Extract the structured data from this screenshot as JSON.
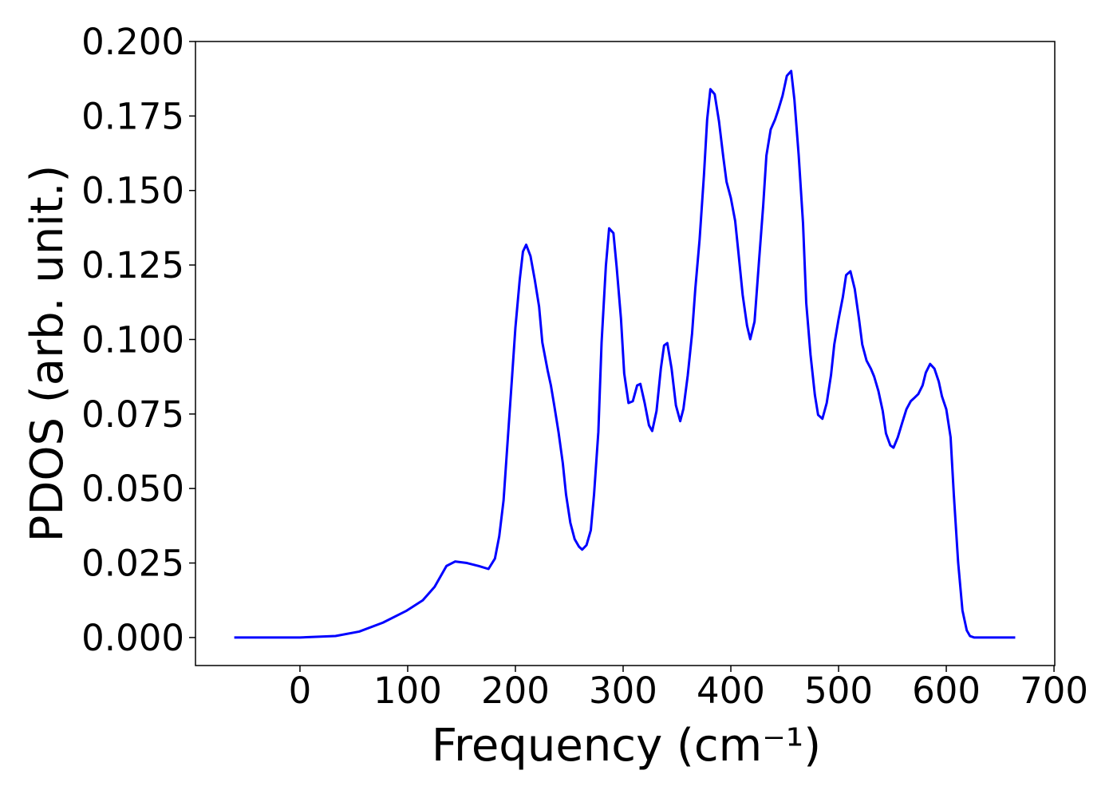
{
  "chart_data": {
    "type": "line",
    "xlabel": "Frequency (cm⁻¹)",
    "ylabel": "PDOS (arb. unit.)",
    "xlim": [
      -97,
      700.7
    ],
    "ylim": [
      -0.0094,
      0.2
    ],
    "xticks": [
      0,
      100,
      200,
      300,
      400,
      500,
      600,
      700
    ],
    "yticks": [
      {
        "value": 0,
        "label": "0.000"
      },
      {
        "value": 0.025,
        "label": "0.025"
      },
      {
        "value": 0.05,
        "label": "0.050"
      },
      {
        "value": 0.075,
        "label": "0.075"
      },
      {
        "value": 0.1,
        "label": "0.100"
      },
      {
        "value": 0.125,
        "label": "0.125"
      },
      {
        "value": 0.15,
        "label": "0.150"
      },
      {
        "value": 0.175,
        "label": "0.175"
      },
      {
        "value": 0.2,
        "label": "0.200"
      }
    ],
    "grid": false,
    "x": [
      -61,
      0,
      33,
      55,
      77,
      99,
      114,
      125,
      136,
      144,
      155,
      166,
      175,
      181,
      185,
      189,
      193,
      197,
      200,
      204,
      207,
      210,
      214,
      218,
      222,
      225,
      230,
      233,
      236,
      240,
      244,
      247,
      251,
      255,
      259,
      262,
      266,
      270,
      273,
      277,
      280,
      284,
      287,
      291,
      294,
      298,
      301,
      305,
      309,
      313,
      316,
      320,
      324,
      327,
      331,
      335,
      338,
      341,
      345,
      349,
      353,
      356,
      360,
      364,
      367,
      371,
      375,
      378,
      381,
      385,
      389,
      393,
      396,
      400,
      404,
      407,
      411,
      415,
      418,
      422,
      426,
      430,
      433,
      437,
      441,
      444,
      448,
      452,
      456,
      459,
      463,
      467,
      470,
      474,
      478,
      481,
      485,
      489,
      493,
      496,
      500,
      504,
      507,
      511,
      515,
      519,
      522,
      526,
      530,
      533,
      537,
      541,
      544,
      548,
      551,
      555,
      559,
      563,
      567,
      570,
      574,
      578,
      581,
      585,
      589,
      593,
      596,
      600,
      604,
      607,
      611,
      615,
      619,
      622,
      626,
      664
    ],
    "series": [
      {
        "name": "PDOS",
        "color": "#0000ff",
        "values": [
          0,
          0,
          0.0005,
          0.002,
          0.005,
          0.009,
          0.0125,
          0.017,
          0.024,
          0.0255,
          0.025,
          0.024,
          0.023,
          0.0265,
          0.034,
          0.046,
          0.067,
          0.088,
          0.104,
          0.12,
          0.1295,
          0.1318,
          0.128,
          0.12,
          0.111,
          0.099,
          0.0895,
          0.0845,
          0.078,
          0.069,
          0.0585,
          0.048,
          0.0385,
          0.033,
          0.0305,
          0.0295,
          0.031,
          0.036,
          0.048,
          0.069,
          0.099,
          0.1248,
          0.1373,
          0.1357,
          0.1243,
          0.107,
          0.0886,
          0.0787,
          0.0793,
          0.0846,
          0.0851,
          0.0787,
          0.0712,
          0.0693,
          0.076,
          0.0902,
          0.098,
          0.0988,
          0.0902,
          0.0779,
          0.0726,
          0.0768,
          0.088,
          0.102,
          0.117,
          0.1336,
          0.155,
          0.1738,
          0.184,
          0.1823,
          0.1732,
          0.1612,
          0.1529,
          0.1475,
          0.1398,
          0.1293,
          0.1149,
          0.1047,
          0.1001,
          0.106,
          0.1256,
          0.1448,
          0.1617,
          0.1705,
          0.1738,
          0.177,
          0.1818,
          0.1885,
          0.1901,
          0.1805,
          0.1617,
          0.139,
          0.1122,
          0.0948,
          0.0814,
          0.0747,
          0.0734,
          0.0787,
          0.0881,
          0.0983,
          0.1068,
          0.1143,
          0.1216,
          0.1229,
          0.117,
          0.1068,
          0.0983,
          0.0929,
          0.0902,
          0.0876,
          0.0827,
          0.076,
          0.0685,
          0.0645,
          0.0637,
          0.0672,
          0.072,
          0.0766,
          0.0793,
          0.0803,
          0.0817,
          0.0846,
          0.0889,
          0.0918,
          0.0902,
          0.0859,
          0.0809,
          0.0766,
          0.0672,
          0.0479,
          0.0252,
          0.0091,
          0.0024,
          0.0005,
          0,
          0
        ]
      }
    ]
  }
}
